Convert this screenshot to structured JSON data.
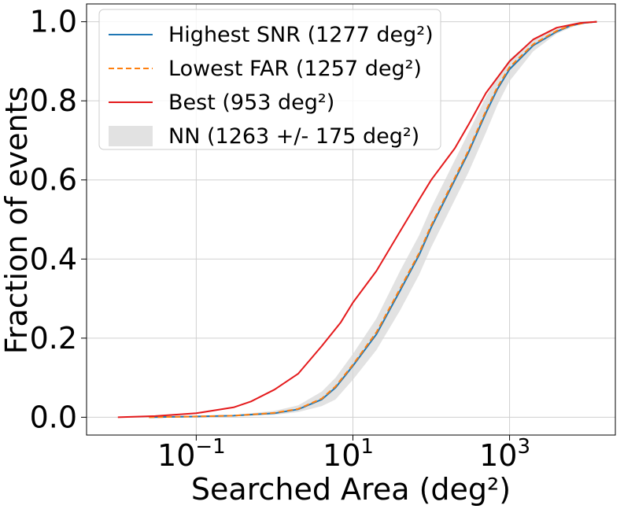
{
  "chart_data": {
    "type": "line",
    "title": "",
    "xlabel": "Searched Area (deg²)",
    "ylabel": "Fraction of events",
    "xscale": "log",
    "xlim": [
      0.00398,
      22400
    ],
    "ylim": [
      -0.045,
      1.045
    ],
    "x_ticks": [
      {
        "value": 0.1,
        "base": "10",
        "exp": "−1"
      },
      {
        "value": 10,
        "base": "10",
        "exp": "1"
      },
      {
        "value": 1000,
        "base": "10",
        "exp": "3"
      }
    ],
    "y_ticks": [
      {
        "value": 0.0,
        "label": "0.0"
      },
      {
        "value": 0.2,
        "label": "0.2"
      },
      {
        "value": 0.4,
        "label": "0.4"
      },
      {
        "value": 0.6,
        "label": "0.6"
      },
      {
        "value": 0.8,
        "label": "0.8"
      },
      {
        "value": 1.0,
        "label": "1.0"
      }
    ],
    "grid": true,
    "legend_position": "top-left",
    "series": [
      {
        "name": "Highest SNR (1277 deg²)",
        "color": "#1f77b4",
        "style": "solid",
        "x": [
          0.025,
          0.1,
          0.3,
          1,
          2,
          4,
          6,
          10,
          20,
          40,
          70,
          100,
          200,
          300,
          500,
          700,
          1000,
          2000,
          4000,
          6000,
          9000,
          13000
        ],
        "y": [
          0.0,
          0.002,
          0.004,
          0.01,
          0.02,
          0.045,
          0.075,
          0.13,
          0.21,
          0.32,
          0.41,
          0.48,
          0.6,
          0.67,
          0.77,
          0.83,
          0.88,
          0.94,
          0.975,
          0.99,
          0.997,
          1.0
        ]
      },
      {
        "name": "Lowest FAR (1257 deg²)",
        "color": "#ff7f0e",
        "style": "dashed",
        "x": [
          0.025,
          0.1,
          0.3,
          1,
          2,
          4,
          6,
          10,
          20,
          40,
          70,
          100,
          200,
          300,
          500,
          700,
          1000,
          2000,
          4000,
          6000,
          9000,
          13000
        ],
        "y": [
          0.0,
          0.002,
          0.004,
          0.011,
          0.021,
          0.047,
          0.078,
          0.133,
          0.215,
          0.325,
          0.415,
          0.485,
          0.605,
          0.675,
          0.775,
          0.835,
          0.885,
          0.943,
          0.977,
          0.99,
          0.997,
          1.0
        ]
      },
      {
        "name": "Best (953 deg²)",
        "color": "#e41a1c",
        "style": "solid",
        "x": [
          0.01,
          0.03,
          0.1,
          0.3,
          0.5,
          1,
          2,
          4,
          7,
          10,
          20,
          40,
          70,
          100,
          200,
          300,
          500,
          1000,
          2000,
          4000,
          8000,
          13000
        ],
        "y": [
          0.0,
          0.003,
          0.01,
          0.025,
          0.04,
          0.07,
          0.11,
          0.18,
          0.24,
          0.29,
          0.37,
          0.47,
          0.55,
          0.6,
          0.68,
          0.74,
          0.82,
          0.9,
          0.955,
          0.985,
          0.997,
          1.0
        ]
      }
    ],
    "bands": [
      {
        "name": "NN (1263 +/- 175 deg²)",
        "color": "#d8d8d8",
        "x": [
          0.3,
          1,
          2,
          4,
          6,
          10,
          20,
          40,
          70,
          100,
          200,
          300,
          500,
          700,
          1000,
          2000,
          4000,
          8000
        ],
        "lower": [
          0.003,
          0.006,
          0.013,
          0.028,
          0.045,
          0.095,
          0.17,
          0.27,
          0.36,
          0.43,
          0.55,
          0.62,
          0.72,
          0.79,
          0.85,
          0.925,
          0.97,
          0.995
        ],
        "upper": [
          0.006,
          0.016,
          0.03,
          0.065,
          0.1,
          0.16,
          0.25,
          0.37,
          0.46,
          0.53,
          0.65,
          0.72,
          0.81,
          0.86,
          0.905,
          0.955,
          0.982,
          0.998
        ]
      }
    ]
  }
}
